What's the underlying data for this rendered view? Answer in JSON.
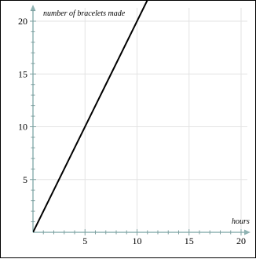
{
  "chart_data": {
    "type": "line",
    "title": "",
    "xlabel": "hours",
    "ylabel": "number of bracelets made",
    "xlim": [
      0,
      21
    ],
    "ylim": [
      0,
      21.5
    ],
    "x_ticks": [
      5,
      10,
      15,
      20
    ],
    "y_ticks": [
      5,
      10,
      15,
      20
    ],
    "x_tick_labels": [
      "5",
      "10",
      "15",
      "20"
    ],
    "y_tick_labels": [
      "5",
      "10",
      "15",
      "20"
    ],
    "minor_tick_step": 1,
    "grid": true,
    "series": [
      {
        "values": [
          [
            0,
            0
          ],
          [
            11.1,
            22.2
          ]
        ]
      }
    ],
    "colors": {
      "line": "#000000",
      "axis": "#8fb3b3",
      "grid": "#e3e3e3",
      "tick": "#7fa0a0"
    }
  }
}
